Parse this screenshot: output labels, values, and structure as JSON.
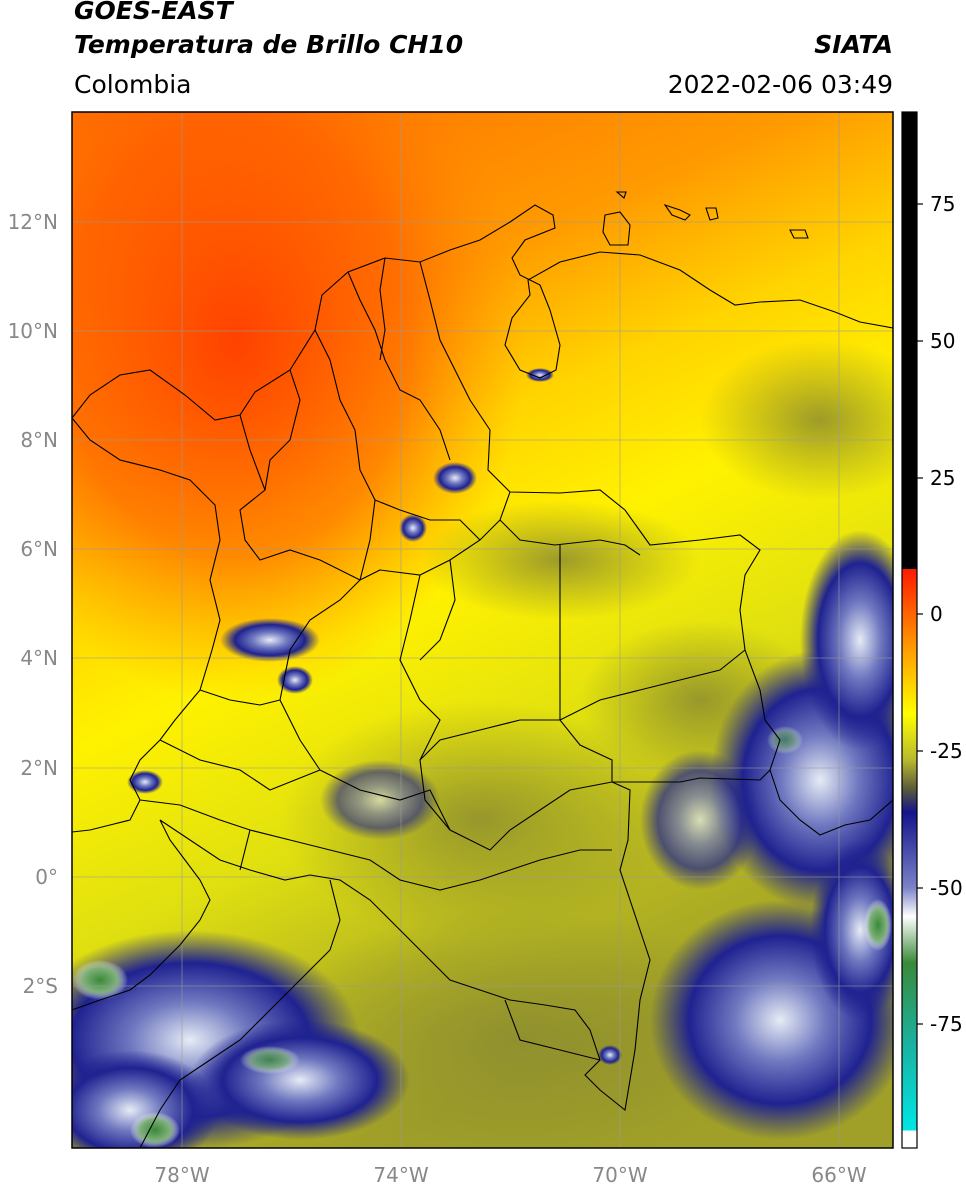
{
  "header": {
    "satellite": "GOES-EAST",
    "product": "Temperatura de Brillo CH10",
    "region": "Colombia",
    "agency": "SIATA",
    "datetime": "2022-02-06 03:49"
  },
  "axes": {
    "lon_ticks": [
      "78°W",
      "74°W",
      "70°W",
      "66°W"
    ],
    "lat_ticks": [
      "12°N",
      "10°N",
      "8°N",
      "6°N",
      "4°N",
      "2°N",
      "0°",
      "2°S"
    ]
  },
  "colorbar": {
    "ticks": [
      "75",
      "50",
      "25",
      "0",
      "-25",
      "-50",
      "-75"
    ],
    "colors": {
      "black": "#000000",
      "red": "#ff1a00",
      "orange": "#ff8c00",
      "yellow": "#ffff00",
      "olive": "#8c8c2a",
      "navy": "#1a1a80",
      "white": "#ffffff",
      "green": "#2a7a2a",
      "teal": "#1ab2a0",
      "cyan": "#00e6e6"
    }
  }
}
